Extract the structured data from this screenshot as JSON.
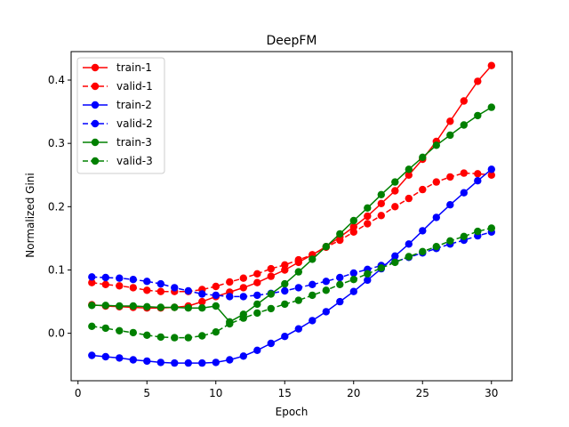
{
  "chart_data": {
    "type": "line",
    "title": "DeepFM",
    "xlabel": "Epoch",
    "ylabel": "Normalized Gini",
    "xlim": [
      -0.5,
      31.5
    ],
    "ylim": [
      -0.075,
      0.445
    ],
    "xticks": [
      0,
      5,
      10,
      15,
      20,
      25,
      30
    ],
    "yticks": [
      0.0,
      0.1,
      0.2,
      0.3,
      0.4
    ],
    "ytick_labels": [
      "0.0",
      "0.1",
      "0.2",
      "0.3",
      "0.4"
    ],
    "grid": false,
    "legend_position": "top-left",
    "x": [
      1,
      2,
      3,
      4,
      5,
      6,
      7,
      8,
      9,
      10,
      11,
      12,
      13,
      14,
      15,
      16,
      17,
      18,
      19,
      20,
      21,
      22,
      23,
      24,
      25,
      26,
      27,
      28,
      29,
      30
    ],
    "series": [
      {
        "name": "train-1",
        "color": "#ff0000",
        "style": "solid",
        "values": [
          0.045,
          0.043,
          0.042,
          0.041,
          0.04,
          0.04,
          0.041,
          0.043,
          0.05,
          0.058,
          0.065,
          0.072,
          0.08,
          0.09,
          0.1,
          0.112,
          0.124,
          0.137,
          0.152,
          0.168,
          0.185,
          0.205,
          0.225,
          0.25,
          0.275,
          0.303,
          0.335,
          0.367,
          0.398,
          0.423
        ]
      },
      {
        "name": "valid-1",
        "color": "#ff0000",
        "style": "dashed",
        "values": [
          0.08,
          0.077,
          0.075,
          0.072,
          0.068,
          0.066,
          0.066,
          0.066,
          0.069,
          0.074,
          0.081,
          0.087,
          0.094,
          0.102,
          0.108,
          0.116,
          0.124,
          0.136,
          0.147,
          0.16,
          0.173,
          0.186,
          0.2,
          0.213,
          0.227,
          0.239,
          0.247,
          0.253,
          0.252,
          0.25
        ]
      },
      {
        "name": "train-2",
        "color": "#0000ff",
        "style": "solid",
        "values": [
          -0.035,
          -0.037,
          -0.039,
          -0.042,
          -0.044,
          -0.046,
          -0.047,
          -0.047,
          -0.047,
          -0.046,
          -0.042,
          -0.036,
          -0.027,
          -0.016,
          -0.005,
          0.007,
          0.02,
          0.034,
          0.05,
          0.066,
          0.084,
          0.102,
          0.122,
          0.141,
          0.162,
          0.183,
          0.203,
          0.222,
          0.241,
          0.259
        ]
      },
      {
        "name": "valid-2",
        "color": "#0000ff",
        "style": "dashed",
        "values": [
          0.089,
          0.088,
          0.087,
          0.085,
          0.082,
          0.078,
          0.072,
          0.067,
          0.062,
          0.06,
          0.058,
          0.058,
          0.06,
          0.063,
          0.067,
          0.072,
          0.077,
          0.082,
          0.088,
          0.095,
          0.101,
          0.107,
          0.113,
          0.12,
          0.127,
          0.134,
          0.141,
          0.147,
          0.154,
          0.16
        ]
      },
      {
        "name": "train-3",
        "color": "#008000",
        "style": "solid",
        "values": [
          0.044,
          0.044,
          0.043,
          0.043,
          0.042,
          0.041,
          0.041,
          0.04,
          0.04,
          0.043,
          0.018,
          0.03,
          0.046,
          0.062,
          0.078,
          0.097,
          0.117,
          0.137,
          0.157,
          0.178,
          0.198,
          0.219,
          0.239,
          0.259,
          0.278,
          0.297,
          0.313,
          0.329,
          0.344,
          0.357
        ]
      },
      {
        "name": "valid-3",
        "color": "#008000",
        "style": "dashed",
        "values": [
          0.011,
          0.008,
          0.004,
          0.001,
          -0.003,
          -0.006,
          -0.007,
          -0.007,
          -0.004,
          0.002,
          0.015,
          0.024,
          0.032,
          0.039,
          0.046,
          0.052,
          0.06,
          0.068,
          0.077,
          0.085,
          0.094,
          0.103,
          0.112,
          0.121,
          0.129,
          0.137,
          0.146,
          0.153,
          0.161,
          0.166
        ]
      }
    ]
  }
}
